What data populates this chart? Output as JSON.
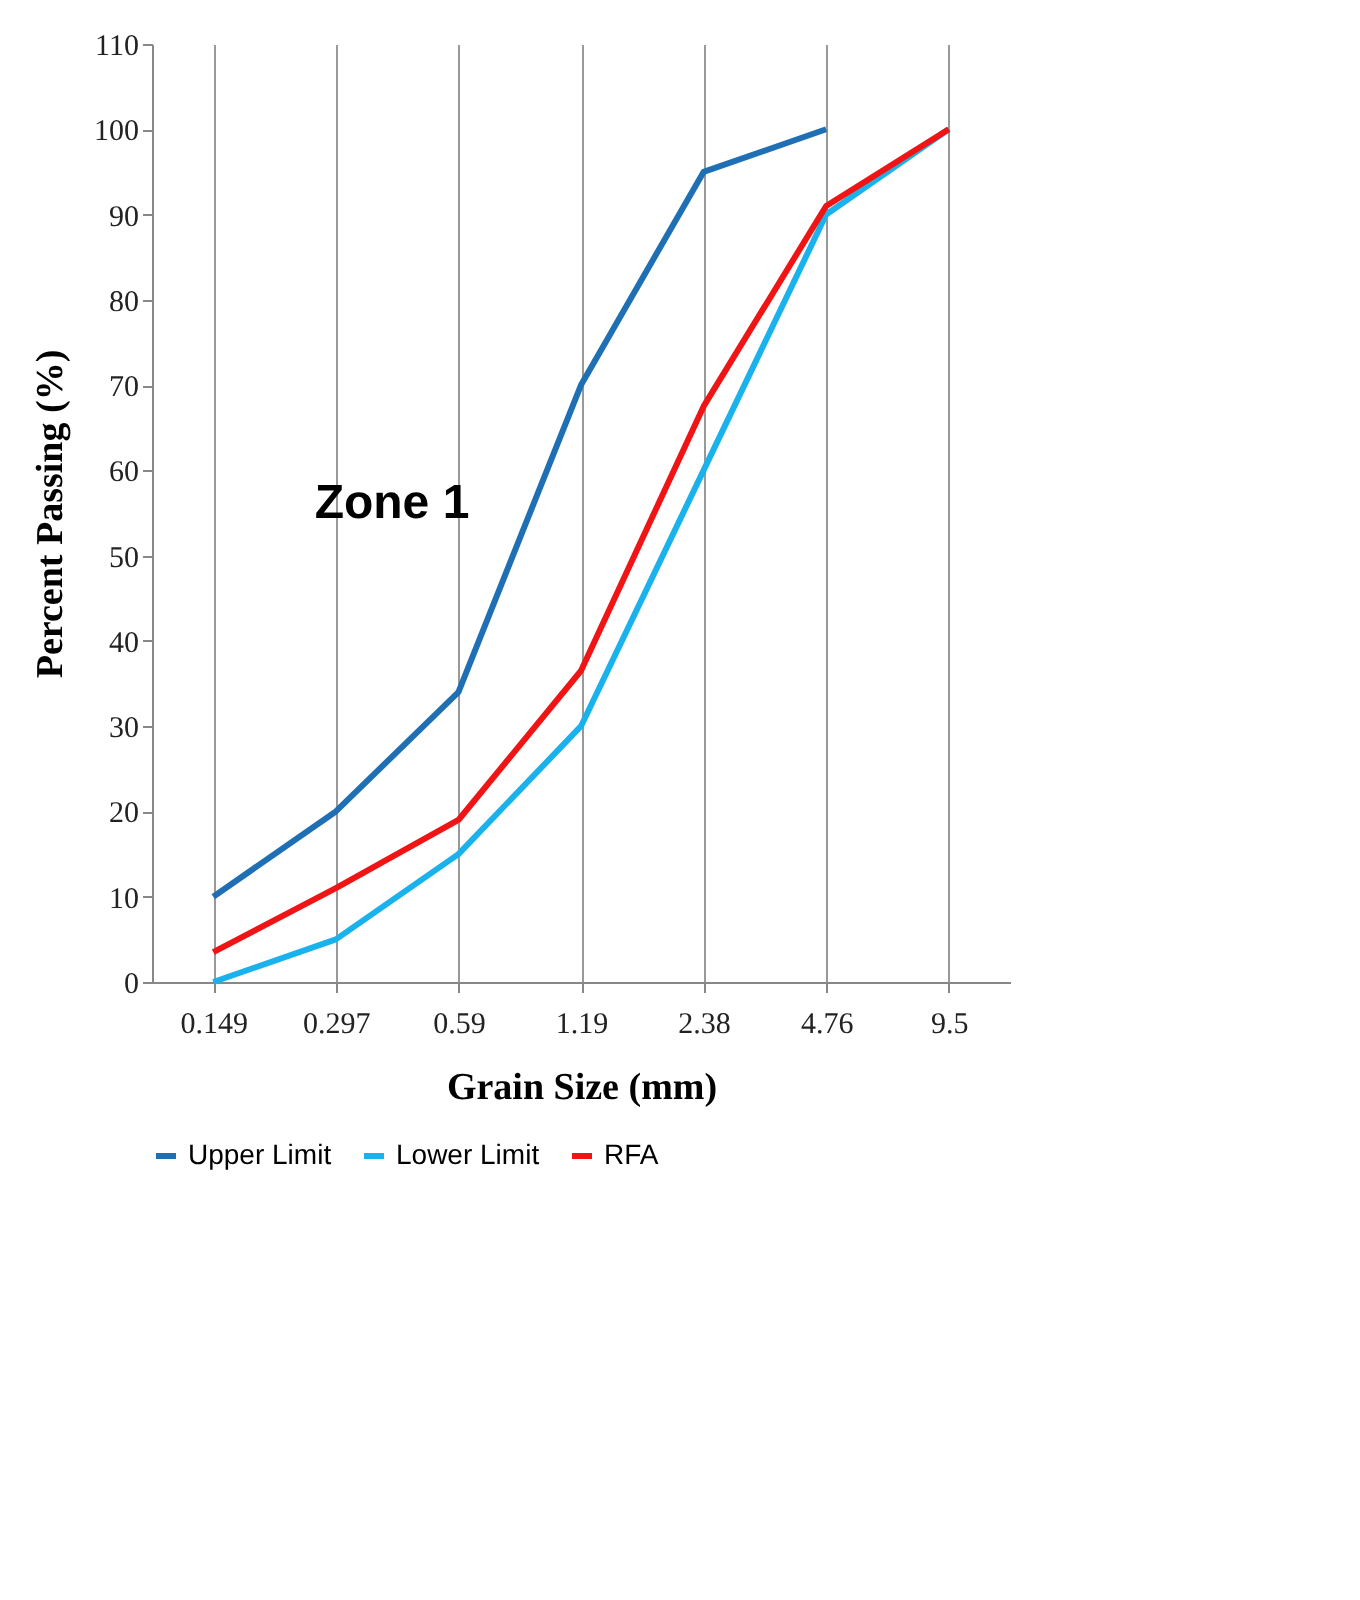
{
  "chart_data": {
    "type": "line",
    "xlabel": "Grain Size (mm)",
    "ylabel": "Percent Passing (%)",
    "categories": [
      "0.149",
      "0.297",
      "0.59",
      "1.19",
      "2.38",
      "4.76",
      "9.5"
    ],
    "series": [
      {
        "name": "Upper Limit",
        "color": "#1f6fb5",
        "values": [
          10,
          20,
          34,
          70,
          95,
          100,
          null
        ]
      },
      {
        "name": "Lower Limit",
        "color": "#1ab2ec",
        "values": [
          0,
          5,
          15,
          30,
          60,
          90,
          100
        ]
      },
      {
        "name": "RFA",
        "color": "#f01414",
        "values": [
          3.5,
          11,
          19,
          36.5,
          67.5,
          91,
          100
        ]
      }
    ],
    "ylim": [
      0,
      110
    ],
    "yticks": [
      0,
      10,
      20,
      30,
      40,
      50,
      60,
      70,
      80,
      90,
      100,
      110
    ],
    "grid": "x",
    "legend": "bottom",
    "marker": "none",
    "line_style": "solid",
    "annotations": [
      "Zone 1"
    ]
  }
}
